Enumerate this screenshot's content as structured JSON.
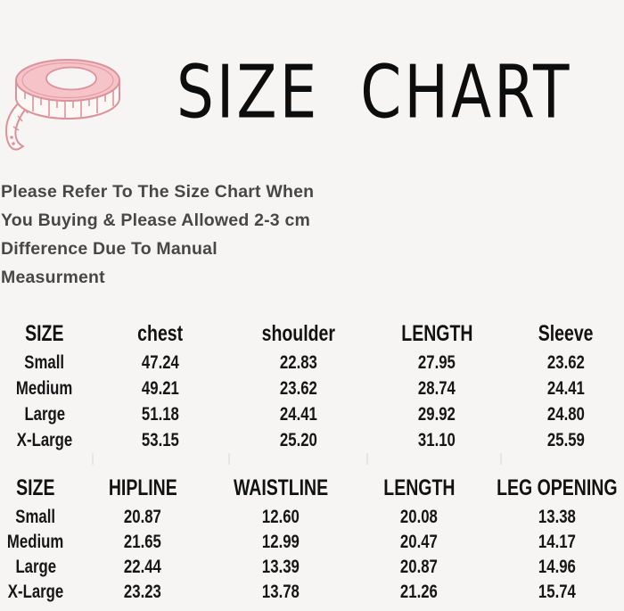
{
  "page": {
    "background": "#f7f5f3"
  },
  "header": {
    "title": "SIZE CHART",
    "icon": "measuring-tape-icon"
  },
  "note": {
    "lines": [
      "Please Refer To The Size Chart When",
      "You Buying & Please Allowed 2-3 cm",
      "Difference Due To Manual",
      "Measurment"
    ]
  },
  "tables": [
    {
      "columns": [
        "SIZE",
        "chest",
        "shoulder",
        "LENGTH",
        "Sleeve"
      ],
      "rows": [
        [
          "Small",
          "47.24",
          "22.83",
          "27.95",
          "23.62"
        ],
        [
          "Medium",
          "49.21",
          "23.62",
          "28.74",
          "24.41"
        ],
        [
          "Large",
          "51.18",
          "24.41",
          "29.92",
          "24.80"
        ],
        [
          "X-Large",
          "53.15",
          "25.20",
          "31.10",
          "25.59"
        ]
      ]
    },
    {
      "columns": [
        "SIZE",
        "HIPLINE",
        "WAISTLINE",
        "LENGTH",
        "LEG OPENING"
      ],
      "rows": [
        [
          "Small",
          "20.87",
          "12.60",
          "20.08",
          "13.38"
        ],
        [
          "Medium",
          "21.65",
          "12.99",
          "20.47",
          "14.17"
        ],
        [
          "Large",
          "22.44",
          "13.39",
          "20.87",
          "14.96"
        ],
        [
          "X-Large",
          "23.23",
          "13.78",
          "21.26",
          "15.74"
        ]
      ]
    }
  ],
  "colors": {
    "tape_fill": "#f5c3c8",
    "tape_outline": "#db929a",
    "title_text": "#0d0d0d",
    "note_text": "#474747",
    "table_text": "#161616",
    "divider_tick": "#e8e6e4"
  }
}
